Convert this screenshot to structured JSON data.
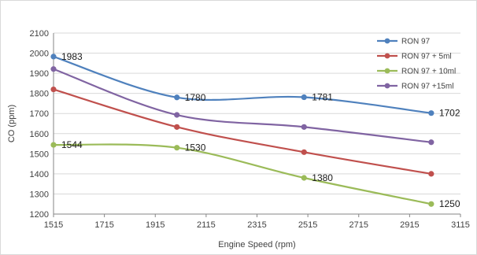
{
  "chart_data": {
    "type": "line",
    "title": "",
    "xlabel": "Engine Speed (rpm)",
    "ylabel": "CO (ppm)",
    "xlim": [
      1515,
      3115
    ],
    "ylim": [
      1200,
      2100
    ],
    "xticks": [
      1515,
      1715,
      1915,
      2115,
      2315,
      2515,
      2715,
      2915,
      3115
    ],
    "yticks": [
      1200,
      1300,
      1400,
      1500,
      1600,
      1700,
      1800,
      1900,
      2000,
      2100
    ],
    "grid": "horizontal",
    "smooth": true,
    "legend_position": "top-right",
    "series": [
      {
        "name": "RON 97",
        "color": "#4f81bd",
        "x": [
          1515,
          2000,
          2500,
          3000
        ],
        "y": [
          1983,
          1780,
          1781,
          1702
        ],
        "labels": [
          "1983",
          "1780",
          "1781",
          "1702"
        ]
      },
      {
        "name": "RON 97 + 5ml",
        "color": "#c0504d",
        "x": [
          1515,
          2000,
          2500,
          3000
        ],
        "y": [
          1820,
          1633,
          1508,
          1400
        ],
        "labels": []
      },
      {
        "name": "RON 97 + 10ml",
        "color": "#9bbb59",
        "x": [
          1515,
          2000,
          2500,
          3000
        ],
        "y": [
          1544,
          1530,
          1380,
          1250
        ],
        "labels": [
          "1544",
          "1530",
          "1380",
          "1250"
        ]
      },
      {
        "name": "RON 97 +15ml",
        "color": "#8064a2",
        "x": [
          1515,
          2000,
          2500,
          3000
        ],
        "y": [
          1921,
          1693,
          1633,
          1557
        ],
        "labels": []
      }
    ]
  }
}
